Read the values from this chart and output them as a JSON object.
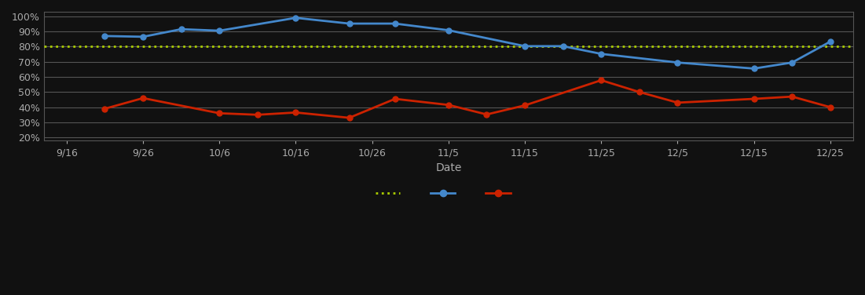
{
  "background_color": "#111111",
  "plot_bg_color": "#111111",
  "grid_color": "#555555",
  "text_color": "#aaaaaa",
  "xlabel": "Date",
  "ylim": [
    0.18,
    1.03
  ],
  "yticks": [
    0.2,
    0.3,
    0.4,
    0.5,
    0.6,
    0.7,
    0.8,
    0.9,
    1.0
  ],
  "ytick_labels": [
    "20%",
    "30%",
    "40%",
    "50%",
    "60%",
    "70%",
    "80%",
    "90%",
    "100%"
  ],
  "xtick_labels": [
    "9/16",
    "9/26",
    "10/6",
    "10/16",
    "10/26",
    "11/5",
    "11/15",
    "11/25",
    "12/5",
    "12/15",
    "12/25"
  ],
  "target_line_y": 0.8,
  "target_line_color": "#aacc00",
  "target_line_style": "dotted",
  "blue_line_color": "#4488cc",
  "blue_x": [
    0.5,
    1.0,
    1.5,
    2.0,
    3.0,
    3.7,
    4.3,
    5.0,
    6.0,
    6.5,
    7.0,
    8.0,
    9.0,
    9.5,
    10.0
  ],
  "blue_y": [
    0.87,
    0.865,
    0.915,
    0.905,
    0.99,
    0.952,
    0.952,
    0.908,
    0.803,
    0.803,
    0.752,
    0.695,
    0.655,
    0.695,
    0.833
  ],
  "red_line_color": "#cc2200",
  "red_x": [
    0.5,
    1.0,
    2.0,
    2.5,
    3.0,
    3.7,
    4.3,
    5.0,
    5.5,
    6.0,
    7.0,
    7.5,
    8.0,
    9.0,
    9.5,
    10.0
  ],
  "red_y": [
    0.39,
    0.46,
    0.36,
    0.35,
    0.365,
    0.33,
    0.455,
    0.415,
    0.352,
    0.412,
    0.578,
    0.5,
    0.43,
    0.455,
    0.47,
    0.4
  ]
}
